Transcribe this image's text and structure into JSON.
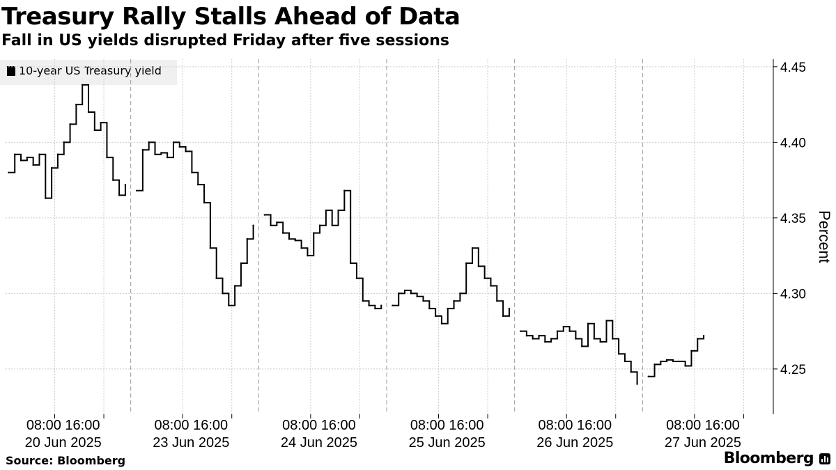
{
  "header": {
    "title": "Treasury Rally Stalls Ahead of Data",
    "subtitle": "Fall in US yields disrupted Friday after five sessions"
  },
  "footer": {
    "source": "Source: Bloomberg",
    "logo_text": "Bloomberg",
    "logo_icon": "bloomberg-bar-chart-icon"
  },
  "colors": {
    "line": "#000000",
    "grid": "#cccccc",
    "legend_bg": "#f0f0f0"
  },
  "chart_data": {
    "type": "line",
    "title": "Treasury Rally Stalls Ahead of Data",
    "subtitle": "Fall in US yields disrupted Friday after five sessions",
    "ylabel": "Percent",
    "ylim": [
      4.22,
      4.455
    ],
    "y_ticks": [
      4.25,
      4.3,
      4.35,
      4.4,
      4.45
    ],
    "y_tick_labels": [
      "4.25",
      "4.30",
      "4.35",
      "4.40",
      "4.45"
    ],
    "y_axis_position": "right",
    "grid": true,
    "legend_position": "top-left",
    "x_hours_per_session_start": 0,
    "days": [
      {
        "date": "20 Jun 2025",
        "time_ticks": [
          "08:00",
          "16:00"
        ]
      },
      {
        "date": "23 Jun 2025",
        "time_ticks": [
          "08:00",
          "16:00"
        ]
      },
      {
        "date": "24 Jun 2025",
        "time_ticks": [
          "08:00",
          "16:00"
        ]
      },
      {
        "date": "25 Jun 2025",
        "time_ticks": [
          "08:00",
          "16:00"
        ]
      },
      {
        "date": "26 Jun 2025",
        "time_ticks": [
          "08:00",
          "16:00"
        ]
      },
      {
        "date": "27 Jun 2025",
        "time_ticks": [
          "08:00",
          "16:00"
        ]
      }
    ],
    "series": [
      {
        "name": "10-year US Treasury yield",
        "sessions": [
          {
            "date": "20 Jun 2025",
            "x_hours": [
              0,
              1,
              2,
              3,
              4,
              5,
              6,
              7,
              8,
              9,
              10,
              11,
              12,
              13,
              14,
              15,
              16,
              17,
              18,
              19
            ],
            "y": [
              4.38,
              4.392,
              4.388,
              4.39,
              4.385,
              4.392,
              4.363,
              4.383,
              4.392,
              4.4,
              4.412,
              4.425,
              4.438,
              4.42,
              4.408,
              4.413,
              4.39,
              4.375,
              4.365,
              4.372
            ]
          },
          {
            "date": "23 Jun 2025",
            "x_hours": [
              0,
              1,
              2,
              3,
              4,
              5,
              6,
              7,
              8,
              9,
              10,
              11,
              12,
              13,
              14,
              15,
              16,
              17,
              18,
              19
            ],
            "y": [
              4.368,
              4.395,
              4.4,
              4.392,
              4.393,
              4.39,
              4.4,
              4.397,
              4.394,
              4.38,
              4.372,
              4.36,
              4.33,
              4.31,
              4.3,
              4.292,
              4.305,
              4.32,
              4.336,
              4.345
            ]
          },
          {
            "date": "24 Jun 2025",
            "x_hours": [
              0,
              1,
              2,
              3,
              4,
              5,
              6,
              7,
              8,
              9,
              10,
              11,
              12,
              13,
              14,
              15,
              16,
              17,
              18,
              19
            ],
            "y": [
              4.352,
              4.345,
              4.347,
              4.34,
              4.336,
              4.335,
              4.33,
              4.325,
              4.34,
              4.345,
              4.355,
              4.345,
              4.355,
              4.368,
              4.32,
              4.31,
              4.295,
              4.292,
              4.29,
              4.292
            ]
          },
          {
            "date": "25 Jun 2025",
            "x_hours": [
              0,
              1,
              2,
              3,
              4,
              5,
              6,
              7,
              8,
              9,
              10,
              11,
              12,
              13,
              14,
              15,
              16,
              17,
              18,
              19
            ],
            "y": [
              4.292,
              4.3,
              4.302,
              4.3,
              4.298,
              4.295,
              4.29,
              4.285,
              4.28,
              4.29,
              4.295,
              4.3,
              4.32,
              4.33,
              4.318,
              4.31,
              4.305,
              4.295,
              4.285,
              4.29
            ]
          },
          {
            "date": "26 Jun 2025",
            "x_hours": [
              0,
              1,
              2,
              3,
              4,
              5,
              6,
              7,
              8,
              9,
              10,
              11,
              12,
              13,
              14,
              15,
              16,
              17,
              18,
              19
            ],
            "y": [
              4.275,
              4.272,
              4.27,
              4.272,
              4.268,
              4.27,
              4.275,
              4.278,
              4.275,
              4.27,
              4.265,
              4.28,
              4.27,
              4.268,
              4.282,
              4.27,
              4.26,
              4.255,
              4.248,
              4.24
            ]
          },
          {
            "date": "27 Jun 2025",
            "x_hours": [
              0,
              1,
              2,
              3,
              4,
              5,
              6,
              7,
              8,
              9
            ],
            "y": [
              4.245,
              4.253,
              4.255,
              4.256,
              4.255,
              4.255,
              4.252,
              4.262,
              4.27,
              4.272
            ]
          }
        ]
      }
    ]
  }
}
